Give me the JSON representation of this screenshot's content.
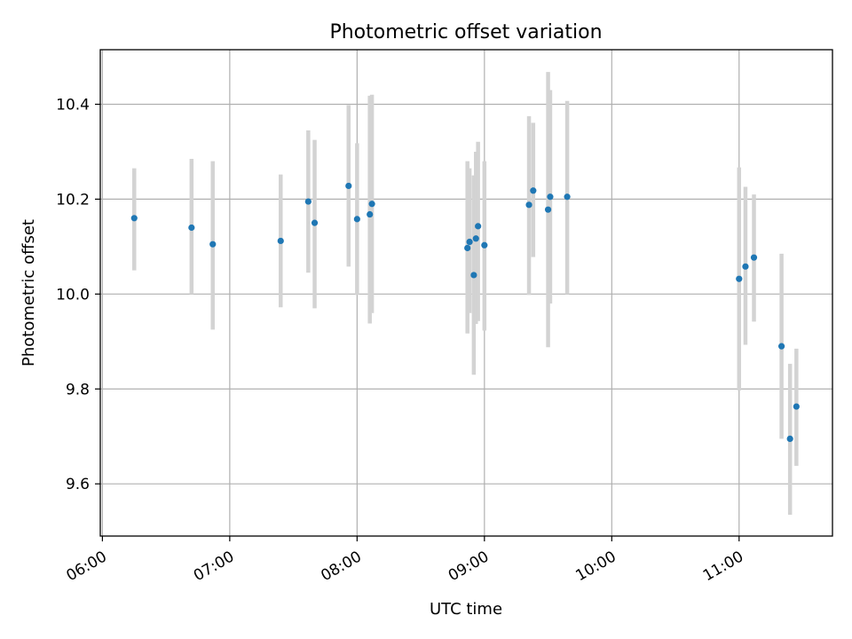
{
  "chart_data": {
    "type": "scatter",
    "title": "Photometric offset variation",
    "xlabel": "UTC time",
    "ylabel": "Photometric offset",
    "x_unit": "time",
    "xlim": [
      "05:59",
      "11:44"
    ],
    "ylim": [
      9.49,
      10.515
    ],
    "x_ticks": [
      "06:00",
      "07:00",
      "08:00",
      "09:00",
      "10:00",
      "11:00"
    ],
    "y_ticks": [
      9.6,
      9.8,
      10.0,
      10.2,
      10.4
    ],
    "y_tick_labels": [
      "9.6",
      "9.8",
      "10.0",
      "10.2",
      "10.4"
    ],
    "grid": true,
    "colors": {
      "marker": "#1f77b4",
      "errorbar": "#d3d3d3",
      "grid": "#b0b0b0"
    },
    "series": [
      {
        "x": [
          "06:15",
          "06:42",
          "06:52",
          "07:24",
          "07:37",
          "07:40",
          "07:56",
          "08:00",
          "08:06",
          "08:07",
          "08:52",
          "08:53",
          "08:55",
          "08:56",
          "08:57",
          "09:00",
          "09:21",
          "09:23",
          "09:30",
          "09:31",
          "09:39",
          "11:00",
          "11:03",
          "11:07",
          "11:20",
          "11:24",
          "11:27"
        ],
        "y": [
          10.16,
          10.14,
          10.105,
          10.112,
          10.195,
          10.15,
          10.228,
          10.158,
          10.168,
          10.19,
          10.097,
          10.11,
          10.04,
          10.117,
          10.143,
          10.103,
          10.188,
          10.218,
          10.178,
          10.205,
          10.205,
          10.032,
          10.058,
          10.077,
          9.89,
          9.695,
          9.763
        ],
        "yerr_low": [
          0.11,
          0.14,
          0.18,
          0.14,
          0.15,
          0.18,
          0.17,
          0.16,
          0.23,
          0.23,
          0.18,
          0.15,
          0.21,
          0.18,
          0.2,
          0.18,
          0.19,
          0.14,
          0.29,
          0.225,
          0.205,
          0.235,
          0.165,
          0.135,
          0.195,
          0.16,
          0.125
        ],
        "yerr_high": [
          0.105,
          0.145,
          0.175,
          0.14,
          0.15,
          0.175,
          0.17,
          0.16,
          0.25,
          0.23,
          0.183,
          0.155,
          0.21,
          0.183,
          0.178,
          0.177,
          0.187,
          0.143,
          0.29,
          0.225,
          0.202,
          0.235,
          0.168,
          0.133,
          0.195,
          0.158,
          0.122
        ]
      }
    ]
  }
}
